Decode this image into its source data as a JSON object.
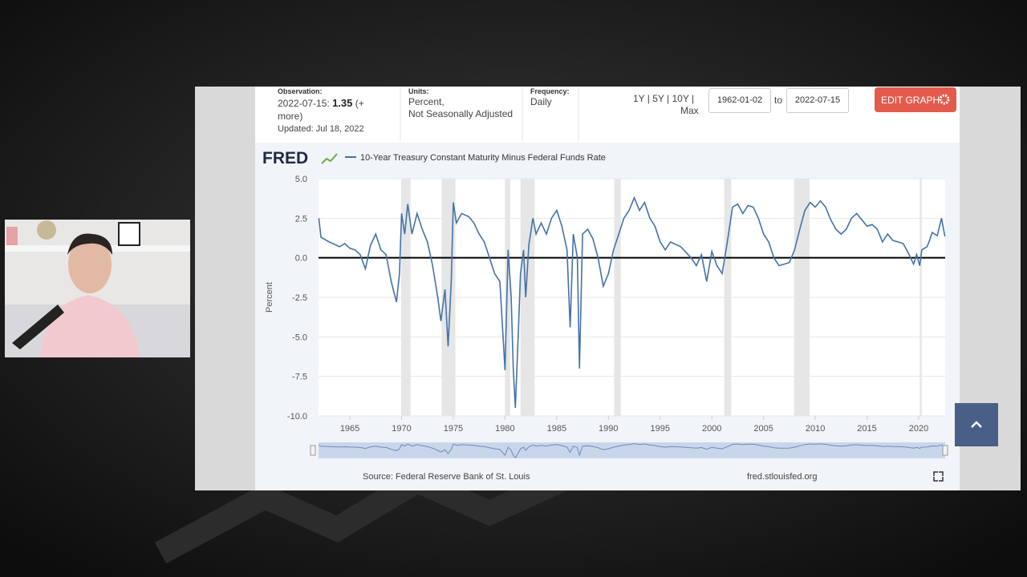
{
  "header": {
    "observation_label": "Observation:",
    "observation_date": "2022-07-15:",
    "observation_value": "1.35",
    "more": "(+ more)",
    "updated": "Updated: Jul 18, 2022",
    "units_label": "Units:",
    "units_line1": "Percent,",
    "units_line2": "Not Seasonally Adjusted",
    "frequency_label": "Frequency:",
    "frequency": "Daily",
    "ranges": "1Y | 5Y | 10Y |",
    "range_max": "Max",
    "start_date": "1962-01-02",
    "to": "to",
    "end_date": "2022-07-15",
    "edit_button": "EDIT GRAPH"
  },
  "logo": "FRED",
  "chart_data": {
    "type": "line",
    "x": [
      1962.0,
      1962.2,
      1963.0,
      1964.0,
      1964.5,
      1965.0,
      1965.5,
      1966.0,
      1966.5,
      1967.0,
      1967.5,
      1968.0,
      1968.5,
      1969.0,
      1969.5,
      1969.8,
      1970.0,
      1970.3,
      1970.6,
      1971.0,
      1971.5,
      1972.0,
      1972.5,
      1973.0,
      1973.5,
      1973.8,
      1974.2,
      1974.5,
      1974.8,
      1975.0,
      1975.3,
      1975.8,
      1976.5,
      1977.0,
      1977.5,
      1978.0,
      1978.5,
      1979.0,
      1979.5,
      1980.0,
      1980.3,
      1980.6,
      1980.8,
      1981.0,
      1981.3,
      1981.5,
      1981.8,
      1982.0,
      1982.3,
      1982.7,
      1983.0,
      1983.5,
      1984.0,
      1984.5,
      1985.0,
      1985.5,
      1986.0,
      1986.3,
      1986.6,
      1987.0,
      1987.2,
      1987.5,
      1988.0,
      1988.5,
      1989.0,
      1989.5,
      1990.0,
      1990.5,
      1991.0,
      1991.5,
      1992.0,
      1992.5,
      1993.0,
      1993.5,
      1994.0,
      1994.5,
      1995.0,
      1995.5,
      1996.0,
      1997.0,
      1998.0,
      1998.5,
      1999.0,
      1999.5,
      2000.0,
      2000.5,
      2001.0,
      2001.5,
      2002.0,
      2002.5,
      2003.0,
      2003.5,
      2004.0,
      2004.5,
      2005.0,
      2005.5,
      2006.0,
      2006.5,
      2007.0,
      2007.5,
      2008.0,
      2008.5,
      2009.0,
      2009.5,
      2010.0,
      2010.5,
      2011.0,
      2011.5,
      2012.0,
      2012.5,
      2013.0,
      2013.5,
      2014.0,
      2014.5,
      2015.0,
      2015.5,
      2016.0,
      2016.5,
      2017.0,
      2017.5,
      2018.0,
      2018.5,
      2019.0,
      2019.5,
      2019.8,
      2020.1,
      2020.3,
      2020.8,
      2021.0,
      2021.3,
      2021.8,
      2022.2,
      2022.54
    ],
    "series": [
      {
        "name": "10-Year Treasury Constant Maturity Minus Federal Funds Rate",
        "color": "#4572a7",
        "values": [
          2.5,
          1.3,
          1.0,
          0.7,
          0.9,
          0.6,
          0.5,
          0.2,
          -0.7,
          0.8,
          1.5,
          0.5,
          0.2,
          -1.5,
          -2.8,
          -1.0,
          2.8,
          1.5,
          3.4,
          1.5,
          2.8,
          1.8,
          1.0,
          -0.5,
          -2.5,
          -4.0,
          -2.0,
          -5.6,
          -1.5,
          3.5,
          2.2,
          2.8,
          2.6,
          2.2,
          1.5,
          1.0,
          0.0,
          -1.0,
          -1.5,
          -7.1,
          0.5,
          -2.5,
          -7.0,
          -9.5,
          -4.5,
          -1.0,
          0.5,
          -2.5,
          0.8,
          2.5,
          1.5,
          2.2,
          1.5,
          2.5,
          3.0,
          2.0,
          0.5,
          -4.4,
          1.5,
          0.0,
          -7.0,
          1.5,
          1.8,
          1.2,
          0.0,
          -1.8,
          -1.0,
          0.5,
          1.5,
          2.5,
          3.0,
          3.8,
          3.0,
          3.5,
          2.5,
          2.0,
          1.0,
          0.5,
          1.0,
          0.7,
          0.0,
          -0.5,
          0.2,
          -1.5,
          0.4,
          -0.5,
          -1.0,
          1.0,
          3.2,
          3.4,
          2.8,
          3.3,
          3.2,
          2.5,
          1.5,
          1.0,
          0.0,
          -0.5,
          -0.4,
          -0.3,
          0.5,
          1.8,
          3.0,
          3.5,
          3.2,
          3.6,
          3.2,
          2.4,
          1.8,
          1.5,
          1.8,
          2.5,
          2.8,
          2.4,
          2.0,
          2.1,
          1.8,
          1.0,
          1.5,
          1.1,
          1.0,
          0.9,
          0.3,
          -0.4,
          0.2,
          -0.5,
          0.5,
          0.7,
          1.0,
          1.6,
          1.4,
          2.5,
          1.35
        ]
      }
    ],
    "xlim": [
      1961.97,
      2022.56
    ],
    "xticks": [
      1965,
      1970,
      1975,
      1980,
      1985,
      1990,
      1995,
      2000,
      2005,
      2010,
      2015,
      2020
    ],
    "ylim": [
      -10,
      5
    ],
    "yticks": [
      {
        "value": 5,
        "label": "5.0"
      },
      2.5,
      {
        "value": 0,
        "label": "0.0"
      },
      -2.5,
      {
        "value": -5,
        "label": "-5.0"
      },
      -7.5,
      {
        "value": -10,
        "label": "-10.0"
      }
    ],
    "ylabel": "Percent",
    "reference_line": 0,
    "grid": true,
    "recessions": [
      [
        1969.95,
        1970.87
      ],
      [
        1973.87,
        1975.2
      ],
      [
        1980.0,
        1980.5
      ],
      [
        1981.5,
        1982.87
      ],
      [
        1990.55,
        1991.2
      ],
      [
        2001.2,
        2001.87
      ],
      [
        2007.95,
        2009.45
      ],
      [
        2020.1,
        2020.3
      ]
    ],
    "recession_color": "#e6e6e6"
  },
  "footer": {
    "source": "Source: Federal Reserve Bank of St. Louis",
    "url": "fred.stlouisfed.org"
  }
}
